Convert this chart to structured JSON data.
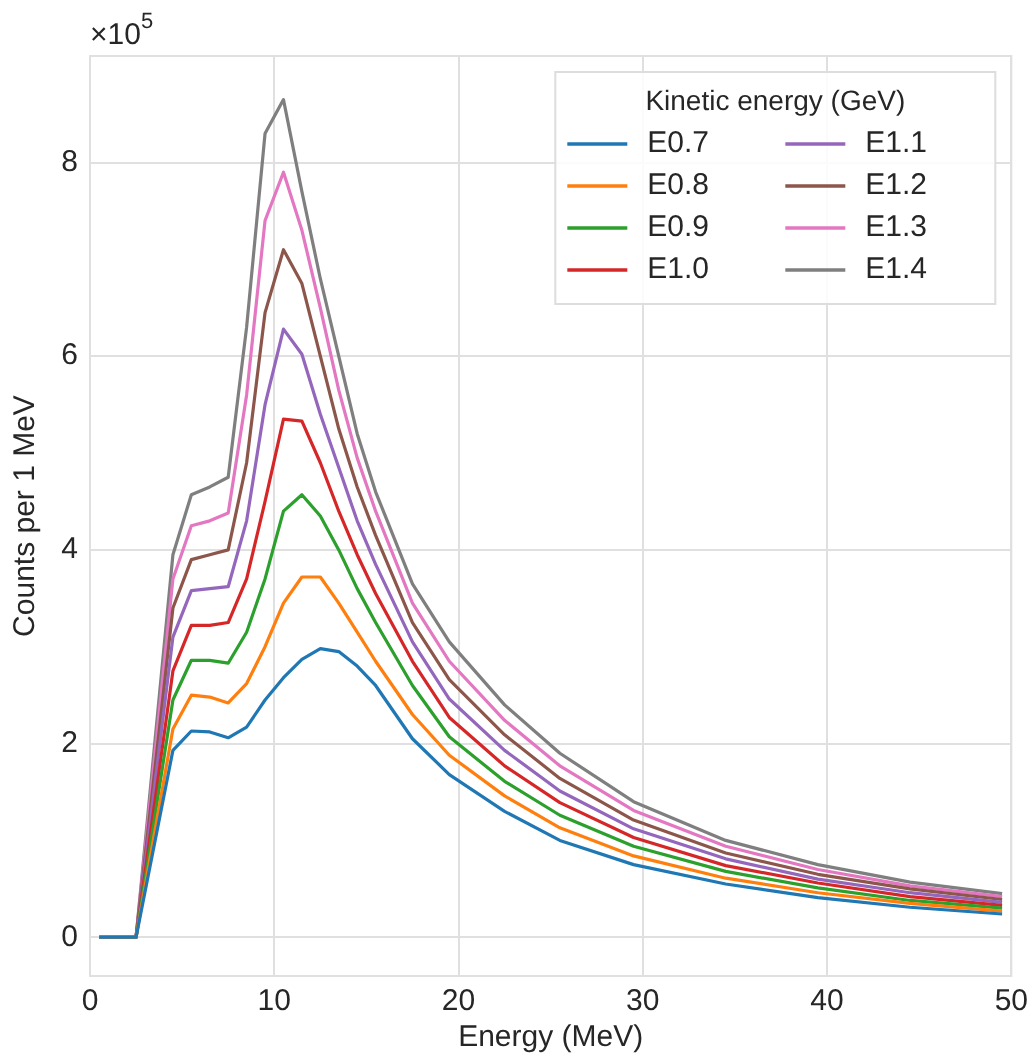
{
  "chart_data": {
    "type": "line",
    "xlabel": "Energy (MeV)",
    "ylabel": "Counts per 1 MeV",
    "legend_title": "Kinetic energy (GeV)",
    "annotations": [
      "×10$^{5}$"
    ],
    "x": [
      0.5,
      1.5,
      2.5,
      4.5,
      5.5,
      6.5,
      7.5,
      8.5,
      9.5,
      10.5,
      11.5,
      12.5,
      13.5,
      14.5,
      15.5,
      17.5,
      19.5,
      22.5,
      25.5,
      29.5,
      34.5,
      39.5,
      44.5,
      49.5
    ],
    "series": [
      {
        "name": "E0.7",
        "color": "#1f77b4",
        "values": [
          0,
          0,
          0,
          1.93,
          2.13,
          2.12,
          2.06,
          2.17,
          2.45,
          2.68,
          2.87,
          2.98,
          2.95,
          2.8,
          2.6,
          2.05,
          1.68,
          1.3,
          1.0,
          0.75,
          0.55,
          0.41,
          0.31,
          0.24
        ]
      },
      {
        "name": "E0.8",
        "color": "#ff7f0e",
        "values": [
          0,
          0,
          0,
          2.15,
          2.5,
          2.48,
          2.42,
          2.62,
          3.0,
          3.45,
          3.72,
          3.72,
          3.45,
          3.15,
          2.85,
          2.3,
          1.88,
          1.46,
          1.13,
          0.84,
          0.61,
          0.46,
          0.35,
          0.27
        ]
      },
      {
        "name": "E0.9",
        "color": "#2ca02c",
        "values": [
          0,
          0,
          0,
          2.45,
          2.86,
          2.86,
          2.83,
          3.15,
          3.7,
          4.4,
          4.57,
          4.35,
          4.0,
          3.6,
          3.25,
          2.6,
          2.07,
          1.61,
          1.26,
          0.94,
          0.68,
          0.51,
          0.38,
          0.3
        ]
      },
      {
        "name": "E1.0",
        "color": "#d62728",
        "values": [
          0,
          0,
          0,
          2.75,
          3.22,
          3.22,
          3.25,
          3.7,
          4.5,
          5.35,
          5.33,
          4.9,
          4.4,
          3.95,
          3.55,
          2.85,
          2.27,
          1.77,
          1.39,
          1.03,
          0.74,
          0.56,
          0.42,
          0.33
        ]
      },
      {
        "name": "E1.1",
        "color": "#9467bd",
        "values": [
          0,
          0,
          0,
          3.1,
          3.58,
          3.6,
          3.62,
          4.3,
          5.5,
          6.28,
          6.02,
          5.4,
          4.85,
          4.3,
          3.85,
          3.05,
          2.46,
          1.93,
          1.51,
          1.12,
          0.81,
          0.6,
          0.46,
          0.36
        ]
      },
      {
        "name": "E1.2",
        "color": "#8c564b",
        "values": [
          0,
          0,
          0,
          3.4,
          3.9,
          3.95,
          4.0,
          4.9,
          6.45,
          7.1,
          6.75,
          6.0,
          5.25,
          4.65,
          4.15,
          3.25,
          2.66,
          2.09,
          1.64,
          1.21,
          0.87,
          0.65,
          0.5,
          0.39
        ]
      },
      {
        "name": "E1.3",
        "color": "#e377c2",
        "values": [
          0,
          0,
          0,
          3.7,
          4.25,
          4.3,
          4.38,
          5.6,
          7.4,
          7.9,
          7.3,
          6.5,
          5.65,
          4.95,
          4.4,
          3.45,
          2.85,
          2.24,
          1.77,
          1.31,
          0.94,
          0.7,
          0.53,
          0.42
        ]
      },
      {
        "name": "E1.4",
        "color": "#7f7f7f",
        "values": [
          0,
          0,
          0,
          3.95,
          4.57,
          4.65,
          4.75,
          6.3,
          8.3,
          8.65,
          7.7,
          6.8,
          6.0,
          5.2,
          4.6,
          3.65,
          3.05,
          2.4,
          1.9,
          1.4,
          1.0,
          0.75,
          0.57,
          0.45
        ]
      }
    ],
    "xlim": [
      0,
      50
    ],
    "xticks": [
      0,
      10,
      20,
      30,
      40,
      50
    ],
    "ylim": [
      -0.4,
      9.1
    ],
    "yticks": [
      0,
      2,
      4,
      6,
      8
    ],
    "grid": true,
    "legend": "top right"
  }
}
